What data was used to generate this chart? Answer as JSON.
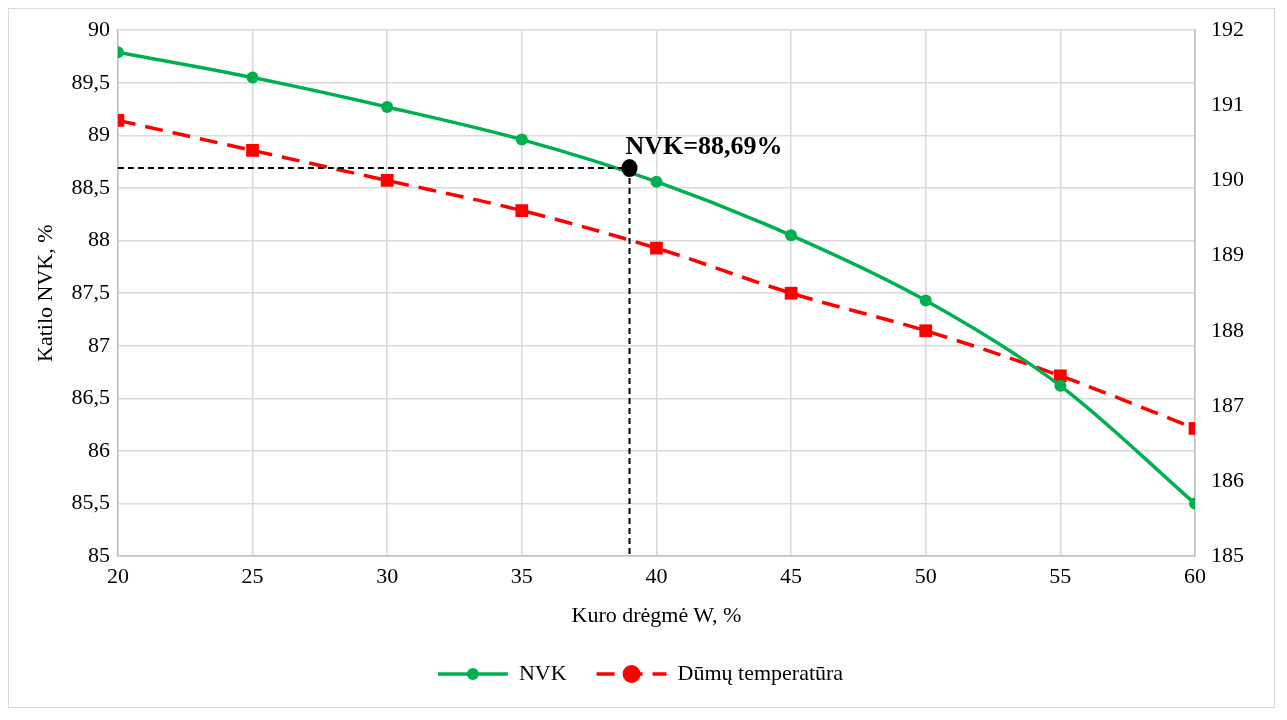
{
  "chart_data": {
    "type": "line",
    "xlabel": "Kuro drėgmė W, %",
    "ylabel": "Katilo NVK, %",
    "x": [
      20,
      25,
      30,
      35,
      40,
      45,
      50,
      55,
      60
    ],
    "series": [
      {
        "name": "NVK",
        "color": "#00b050",
        "marker": "circle",
        "line_style": "solid",
        "values": [
          89.79,
          89.55,
          89.27,
          88.96,
          88.56,
          88.05,
          87.43,
          86.62,
          85.5
        ]
      },
      {
        "name": "Dūmų temperatūra",
        "color": "#ff0000",
        "marker": "square",
        "line_style": "dashed",
        "axis": "y2",
        "values": [
          190.8,
          190.4,
          190.0,
          189.6,
          189.1,
          188.5,
          188.0,
          187.4,
          186.7
        ]
      }
    ],
    "xlim": [
      20,
      60
    ],
    "xticks": [
      20,
      25,
      30,
      35,
      40,
      45,
      50,
      55,
      60
    ],
    "ylim": [
      85,
      90
    ],
    "yticks": [
      85,
      {
        "value": 85.5,
        "label": "85,5"
      },
      86,
      {
        "value": 86.5,
        "label": "86,5"
      },
      87,
      {
        "value": 87.5,
        "label": "87,5"
      },
      88,
      {
        "value": 88.5,
        "label": "88,5"
      },
      89,
      {
        "value": 89.5,
        "label": "89,5"
      },
      90
    ],
    "y2lim": [
      185,
      192
    ],
    "y2ticks": [
      185,
      186,
      187,
      188,
      189,
      190,
      191,
      192
    ],
    "annotations": [
      {
        "text": "NVK=88,69%",
        "x": 39,
        "y": 88.69
      }
    ],
    "grid": true,
    "legend": "bottom"
  }
}
